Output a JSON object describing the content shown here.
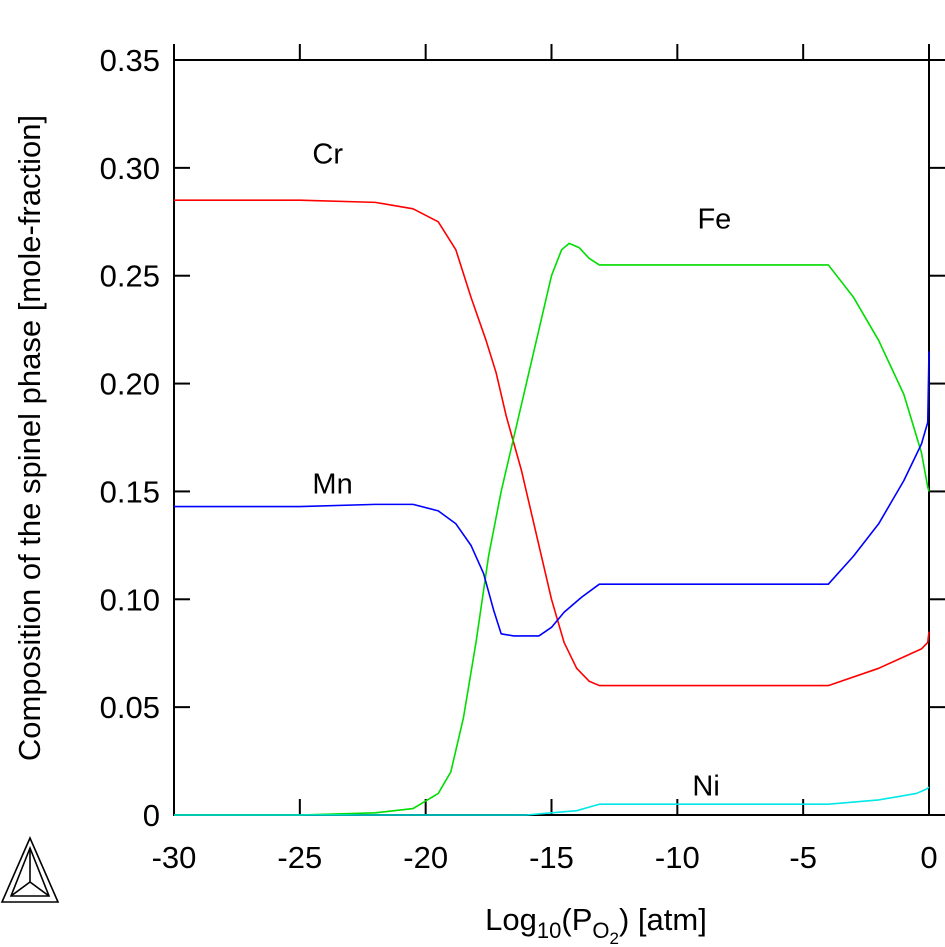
{
  "chart_data": {
    "type": "line",
    "title": "",
    "ylabel": "Composition of the spinel phase [mole-fraction]",
    "xlabel": {
      "base": "Log",
      "sub": "10",
      "open": "(P",
      "sub1": "O",
      "sub2": "2",
      "close": ") [atm]"
    },
    "xlim": [
      -30,
      0
    ],
    "ylim": [
      0,
      0.35
    ],
    "x_ticks": [
      -30,
      -25,
      -20,
      -15,
      -10,
      -5,
      0
    ],
    "x_tick_labels": [
      "-30",
      "-25",
      "-20",
      "-15",
      "-10",
      "-5",
      "0"
    ],
    "y_ticks": [
      0,
      0.05,
      0.1,
      0.15,
      0.2,
      0.25,
      0.3,
      0.35
    ],
    "y_tick_labels": [
      "0",
      "0.05",
      "0.10",
      "0.15",
      "0.20",
      "0.25",
      "0.30",
      "0.35"
    ],
    "grid": false,
    "legend": "none (inline labels)",
    "series": [
      {
        "name": "Cr",
        "color": "#ff0000",
        "label_at": [
          -24.5,
          0.302
        ],
        "points": [
          [
            -30,
            0.285
          ],
          [
            -25,
            0.285
          ],
          [
            -22,
            0.284
          ],
          [
            -20.5,
            0.281
          ],
          [
            -19.5,
            0.275
          ],
          [
            -18.8,
            0.262
          ],
          [
            -18.2,
            0.24
          ],
          [
            -17.6,
            0.22
          ],
          [
            -17.2,
            0.205
          ],
          [
            -16.8,
            0.185
          ],
          [
            -16.2,
            0.16
          ],
          [
            -15.6,
            0.13
          ],
          [
            -15.0,
            0.1
          ],
          [
            -14.5,
            0.08
          ],
          [
            -14.0,
            0.068
          ],
          [
            -13.5,
            0.062
          ],
          [
            -13.1,
            0.06
          ],
          [
            -10,
            0.06
          ],
          [
            -4,
            0.06
          ],
          [
            -2,
            0.068
          ],
          [
            -0.3,
            0.077
          ],
          [
            -0.05,
            0.08
          ],
          [
            0,
            0.085
          ]
        ]
      },
      {
        "name": "Fe",
        "color": "#00dd00",
        "label_at": [
          -9.2,
          0.272
        ],
        "points": [
          [
            -30,
            0.0
          ],
          [
            -25,
            0.0
          ],
          [
            -22,
            0.001
          ],
          [
            -20.5,
            0.003
          ],
          [
            -19.5,
            0.01
          ],
          [
            -19.0,
            0.02
          ],
          [
            -18.5,
            0.045
          ],
          [
            -18.0,
            0.08
          ],
          [
            -17.5,
            0.12
          ],
          [
            -17.0,
            0.15
          ],
          [
            -16.5,
            0.175
          ],
          [
            -16.0,
            0.2
          ],
          [
            -15.5,
            0.225
          ],
          [
            -15.0,
            0.25
          ],
          [
            -14.6,
            0.262
          ],
          [
            -14.3,
            0.265
          ],
          [
            -13.9,
            0.263
          ],
          [
            -13.5,
            0.258
          ],
          [
            -13.1,
            0.255
          ],
          [
            -10,
            0.255
          ],
          [
            -4,
            0.255
          ],
          [
            -3,
            0.24
          ],
          [
            -2,
            0.22
          ],
          [
            -1,
            0.195
          ],
          [
            -0.3,
            0.168
          ],
          [
            -0.05,
            0.152
          ],
          [
            0,
            0.15
          ]
        ]
      },
      {
        "name": "Mn",
        "color": "#0000ff",
        "label_at": [
          -24.5,
          0.149
        ],
        "points": [
          [
            -30,
            0.143
          ],
          [
            -25,
            0.143
          ],
          [
            -22,
            0.144
          ],
          [
            -20.5,
            0.144
          ],
          [
            -19.5,
            0.141
          ],
          [
            -18.8,
            0.135
          ],
          [
            -18.2,
            0.125
          ],
          [
            -17.7,
            0.112
          ],
          [
            -17.3,
            0.095
          ],
          [
            -17.0,
            0.084
          ],
          [
            -16.5,
            0.083
          ],
          [
            -15.5,
            0.083
          ],
          [
            -15.0,
            0.087
          ],
          [
            -14.5,
            0.094
          ],
          [
            -13.8,
            0.101
          ],
          [
            -13.1,
            0.107
          ],
          [
            -10,
            0.107
          ],
          [
            -4,
            0.107
          ],
          [
            -3,
            0.12
          ],
          [
            -2,
            0.135
          ],
          [
            -1,
            0.155
          ],
          [
            -0.3,
            0.172
          ],
          [
            -0.05,
            0.182
          ],
          [
            0,
            0.215
          ]
        ]
      },
      {
        "name": "Ni",
        "color": "#00e8e8",
        "label_at": [
          -9.4,
          0.009
        ],
        "points": [
          [
            -30,
            0.0
          ],
          [
            -20,
            0.0
          ],
          [
            -16,
            0.0
          ],
          [
            -15,
            0.001
          ],
          [
            -14,
            0.002
          ],
          [
            -13.4,
            0.004
          ],
          [
            -13.1,
            0.005
          ],
          [
            -10,
            0.005
          ],
          [
            -4,
            0.005
          ],
          [
            -2,
            0.007
          ],
          [
            -0.5,
            0.01
          ],
          [
            -0.1,
            0.012
          ],
          [
            0,
            0.013
          ]
        ]
      }
    ]
  }
}
